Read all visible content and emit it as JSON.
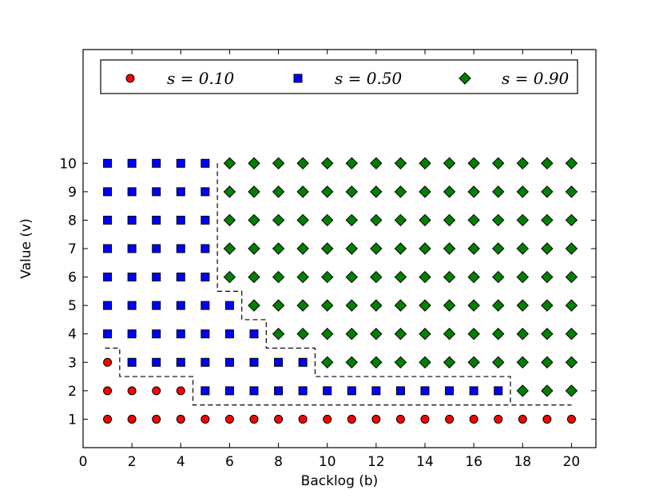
{
  "chart_data": {
    "type": "scatter",
    "title": "",
    "xlabel": "Backlog (b)",
    "ylabel": "Value (v)",
    "xlim": [
      0,
      21
    ],
    "ylim": [
      0,
      14
    ],
    "xticks": [
      "0",
      "2",
      "4",
      "6",
      "8",
      "10",
      "12",
      "14",
      "16",
      "18",
      "20"
    ],
    "yticks": [
      "1",
      "2",
      "3",
      "4",
      "5",
      "6",
      "7",
      "8",
      "9",
      "10"
    ],
    "grid": false,
    "legend_position": "top",
    "series": [
      {
        "name": "s = 0.10",
        "marker": "circle",
        "color": "#ff0000",
        "points": [
          [
            1,
            1
          ],
          [
            2,
            1
          ],
          [
            3,
            1
          ],
          [
            4,
            1
          ],
          [
            5,
            1
          ],
          [
            6,
            1
          ],
          [
            7,
            1
          ],
          [
            8,
            1
          ],
          [
            9,
            1
          ],
          [
            10,
            1
          ],
          [
            11,
            1
          ],
          [
            12,
            1
          ],
          [
            13,
            1
          ],
          [
            14,
            1
          ],
          [
            15,
            1
          ],
          [
            16,
            1
          ],
          [
            17,
            1
          ],
          [
            18,
            1
          ],
          [
            19,
            1
          ],
          [
            20,
            1
          ],
          [
            1,
            2
          ],
          [
            2,
            2
          ],
          [
            3,
            2
          ],
          [
            4,
            2
          ],
          [
            1,
            3
          ]
        ]
      },
      {
        "name": "s = 0.50",
        "marker": "square",
        "color": "#0000ff",
        "points": [
          [
            5,
            2
          ],
          [
            6,
            2
          ],
          [
            7,
            2
          ],
          [
            8,
            2
          ],
          [
            9,
            2
          ],
          [
            10,
            2
          ],
          [
            11,
            2
          ],
          [
            12,
            2
          ],
          [
            13,
            2
          ],
          [
            14,
            2
          ],
          [
            15,
            2
          ],
          [
            16,
            2
          ],
          [
            17,
            2
          ],
          [
            2,
            3
          ],
          [
            3,
            3
          ],
          [
            4,
            3
          ],
          [
            5,
            3
          ],
          [
            6,
            3
          ],
          [
            7,
            3
          ],
          [
            8,
            3
          ],
          [
            9,
            3
          ],
          [
            1,
            4
          ],
          [
            2,
            4
          ],
          [
            3,
            4
          ],
          [
            4,
            4
          ],
          [
            5,
            4
          ],
          [
            6,
            4
          ],
          [
            7,
            4
          ],
          [
            1,
            5
          ],
          [
            2,
            5
          ],
          [
            3,
            5
          ],
          [
            4,
            5
          ],
          [
            5,
            5
          ],
          [
            6,
            5
          ],
          [
            1,
            6
          ],
          [
            2,
            6
          ],
          [
            3,
            6
          ],
          [
            4,
            6
          ],
          [
            5,
            6
          ],
          [
            1,
            7
          ],
          [
            2,
            7
          ],
          [
            3,
            7
          ],
          [
            4,
            7
          ],
          [
            5,
            7
          ],
          [
            1,
            8
          ],
          [
            2,
            8
          ],
          [
            3,
            8
          ],
          [
            4,
            8
          ],
          [
            5,
            8
          ],
          [
            1,
            9
          ],
          [
            2,
            9
          ],
          [
            3,
            9
          ],
          [
            4,
            9
          ],
          [
            5,
            9
          ],
          [
            1,
            10
          ],
          [
            2,
            10
          ],
          [
            3,
            10
          ],
          [
            4,
            10
          ],
          [
            5,
            10
          ]
        ]
      },
      {
        "name": "s = 0.90",
        "marker": "diamond",
        "color": "#008000",
        "points": [
          [
            18,
            2
          ],
          [
            19,
            2
          ],
          [
            20,
            2
          ],
          [
            10,
            3
          ],
          [
            11,
            3
          ],
          [
            12,
            3
          ],
          [
            13,
            3
          ],
          [
            14,
            3
          ],
          [
            15,
            3
          ],
          [
            16,
            3
          ],
          [
            17,
            3
          ],
          [
            18,
            3
          ],
          [
            19,
            3
          ],
          [
            20,
            3
          ],
          [
            8,
            4
          ],
          [
            9,
            4
          ],
          [
            10,
            4
          ],
          [
            11,
            4
          ],
          [
            12,
            4
          ],
          [
            13,
            4
          ],
          [
            14,
            4
          ],
          [
            15,
            4
          ],
          [
            16,
            4
          ],
          [
            17,
            4
          ],
          [
            18,
            4
          ],
          [
            19,
            4
          ],
          [
            20,
            4
          ],
          [
            7,
            5
          ],
          [
            8,
            5
          ],
          [
            9,
            5
          ],
          [
            10,
            5
          ],
          [
            11,
            5
          ],
          [
            12,
            5
          ],
          [
            13,
            5
          ],
          [
            14,
            5
          ],
          [
            15,
            5
          ],
          [
            16,
            5
          ],
          [
            17,
            5
          ],
          [
            18,
            5
          ],
          [
            19,
            5
          ],
          [
            20,
            5
          ],
          [
            6,
            6
          ],
          [
            7,
            6
          ],
          [
            8,
            6
          ],
          [
            9,
            6
          ],
          [
            10,
            6
          ],
          [
            11,
            6
          ],
          [
            12,
            6
          ],
          [
            13,
            6
          ],
          [
            14,
            6
          ],
          [
            15,
            6
          ],
          [
            16,
            6
          ],
          [
            17,
            6
          ],
          [
            18,
            6
          ],
          [
            19,
            6
          ],
          [
            20,
            6
          ],
          [
            6,
            7
          ],
          [
            7,
            7
          ],
          [
            8,
            7
          ],
          [
            9,
            7
          ],
          [
            10,
            7
          ],
          [
            11,
            7
          ],
          [
            12,
            7
          ],
          [
            13,
            7
          ],
          [
            14,
            7
          ],
          [
            15,
            7
          ],
          [
            16,
            7
          ],
          [
            17,
            7
          ],
          [
            18,
            7
          ],
          [
            19,
            7
          ],
          [
            20,
            7
          ],
          [
            6,
            8
          ],
          [
            7,
            8
          ],
          [
            8,
            8
          ],
          [
            9,
            8
          ],
          [
            10,
            8
          ],
          [
            11,
            8
          ],
          [
            12,
            8
          ],
          [
            13,
            8
          ],
          [
            14,
            8
          ],
          [
            15,
            8
          ],
          [
            16,
            8
          ],
          [
            17,
            8
          ],
          [
            18,
            8
          ],
          [
            19,
            8
          ],
          [
            20,
            8
          ],
          [
            6,
            9
          ],
          [
            7,
            9
          ],
          [
            8,
            9
          ],
          [
            9,
            9
          ],
          [
            10,
            9
          ],
          [
            11,
            9
          ],
          [
            12,
            9
          ],
          [
            13,
            9
          ],
          [
            14,
            9
          ],
          [
            15,
            9
          ],
          [
            16,
            9
          ],
          [
            17,
            9
          ],
          [
            18,
            9
          ],
          [
            19,
            9
          ],
          [
            20,
            9
          ],
          [
            6,
            10
          ],
          [
            7,
            10
          ],
          [
            8,
            10
          ],
          [
            9,
            10
          ],
          [
            10,
            10
          ],
          [
            11,
            10
          ],
          [
            12,
            10
          ],
          [
            13,
            10
          ],
          [
            14,
            10
          ],
          [
            15,
            10
          ],
          [
            16,
            10
          ],
          [
            17,
            10
          ],
          [
            18,
            10
          ],
          [
            19,
            10
          ],
          [
            20,
            10
          ]
        ]
      }
    ],
    "boundaries": [
      [
        [
          0.9,
          3.5
        ],
        [
          1.5,
          3.5
        ],
        [
          1.5,
          2.5
        ],
        [
          4.5,
          2.5
        ],
        [
          4.5,
          1.5
        ],
        [
          20,
          1.5
        ]
      ],
      [
        [
          5.5,
          10.0
        ],
        [
          5.5,
          5.5
        ],
        [
          6.5,
          5.5
        ],
        [
          6.5,
          4.5
        ],
        [
          7.5,
          4.5
        ],
        [
          7.5,
          3.5
        ],
        [
          9.5,
          3.5
        ],
        [
          9.5,
          2.5
        ],
        [
          17.5,
          2.5
        ],
        [
          17.5,
          1.5
        ]
      ]
    ]
  }
}
